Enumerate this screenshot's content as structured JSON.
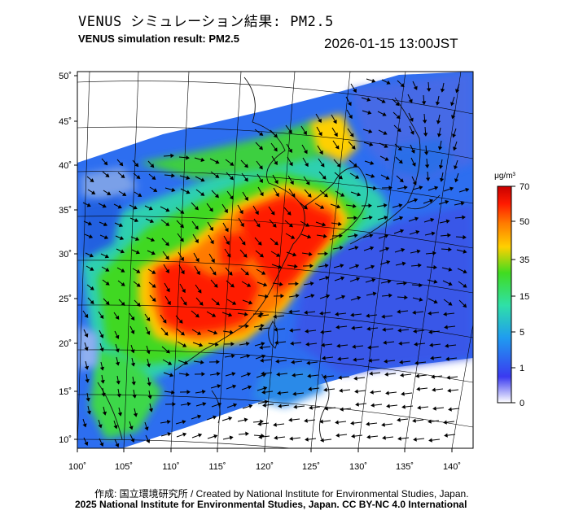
{
  "header": {
    "title_jp": "VENUS シミュレーション結果: PM2.5",
    "title_en": "VENUS simulation result: PM2.5",
    "timestamp": "2026-01-15 13:00JST"
  },
  "map": {
    "lat_labels": [
      "50˚",
      "45˚",
      "40˚",
      "35˚",
      "30˚",
      "25˚",
      "20˚",
      "15˚",
      "10˚"
    ],
    "lon_labels": [
      "100˚",
      "105˚",
      "110˚",
      "115˚",
      "120˚",
      "125˚",
      "130˚",
      "135˚",
      "140˚"
    ],
    "lat_range": [
      9,
      50.5
    ],
    "lon_range": [
      100,
      142
    ],
    "variable": "PM2.5",
    "hotspots": [
      {
        "name": "",
        "lon": 117.3,
        "lat": 34.5,
        "level": 70
      },
      {
        "name": "",
        "lon": 121.5,
        "lat": 32.2,
        "level": 70
      },
      {
        "name": "",
        "lon": 111.0,
        "lat": 25.5,
        "level": 70
      },
      {
        "name": "",
        "lon": 115.5,
        "lat": 23.8,
        "level": 65
      },
      {
        "name": "",
        "lon": 120.2,
        "lat": 28.8,
        "level": 60
      }
    ]
  },
  "colorbar": {
    "unit": "μg/m³",
    "ticks": [
      "70",
      "50",
      "35",
      "15",
      "5",
      "1",
      "0"
    ],
    "colors": [
      "#ffffff",
      "#3a3af0",
      "#1f9cf0",
      "#2fe0a8",
      "#40dc20",
      "#ffd000",
      "#ff7a00",
      "#ff1a00",
      "#c80000"
    ]
  },
  "footer": {
    "credit_1": "作成: 国立環境研究所 / Created by National Institute for Environmental Studies, Japan.",
    "credit_2": "2025 National Institute for Environmental Studies, Japan. CC BY-NC 4.0 International"
  }
}
